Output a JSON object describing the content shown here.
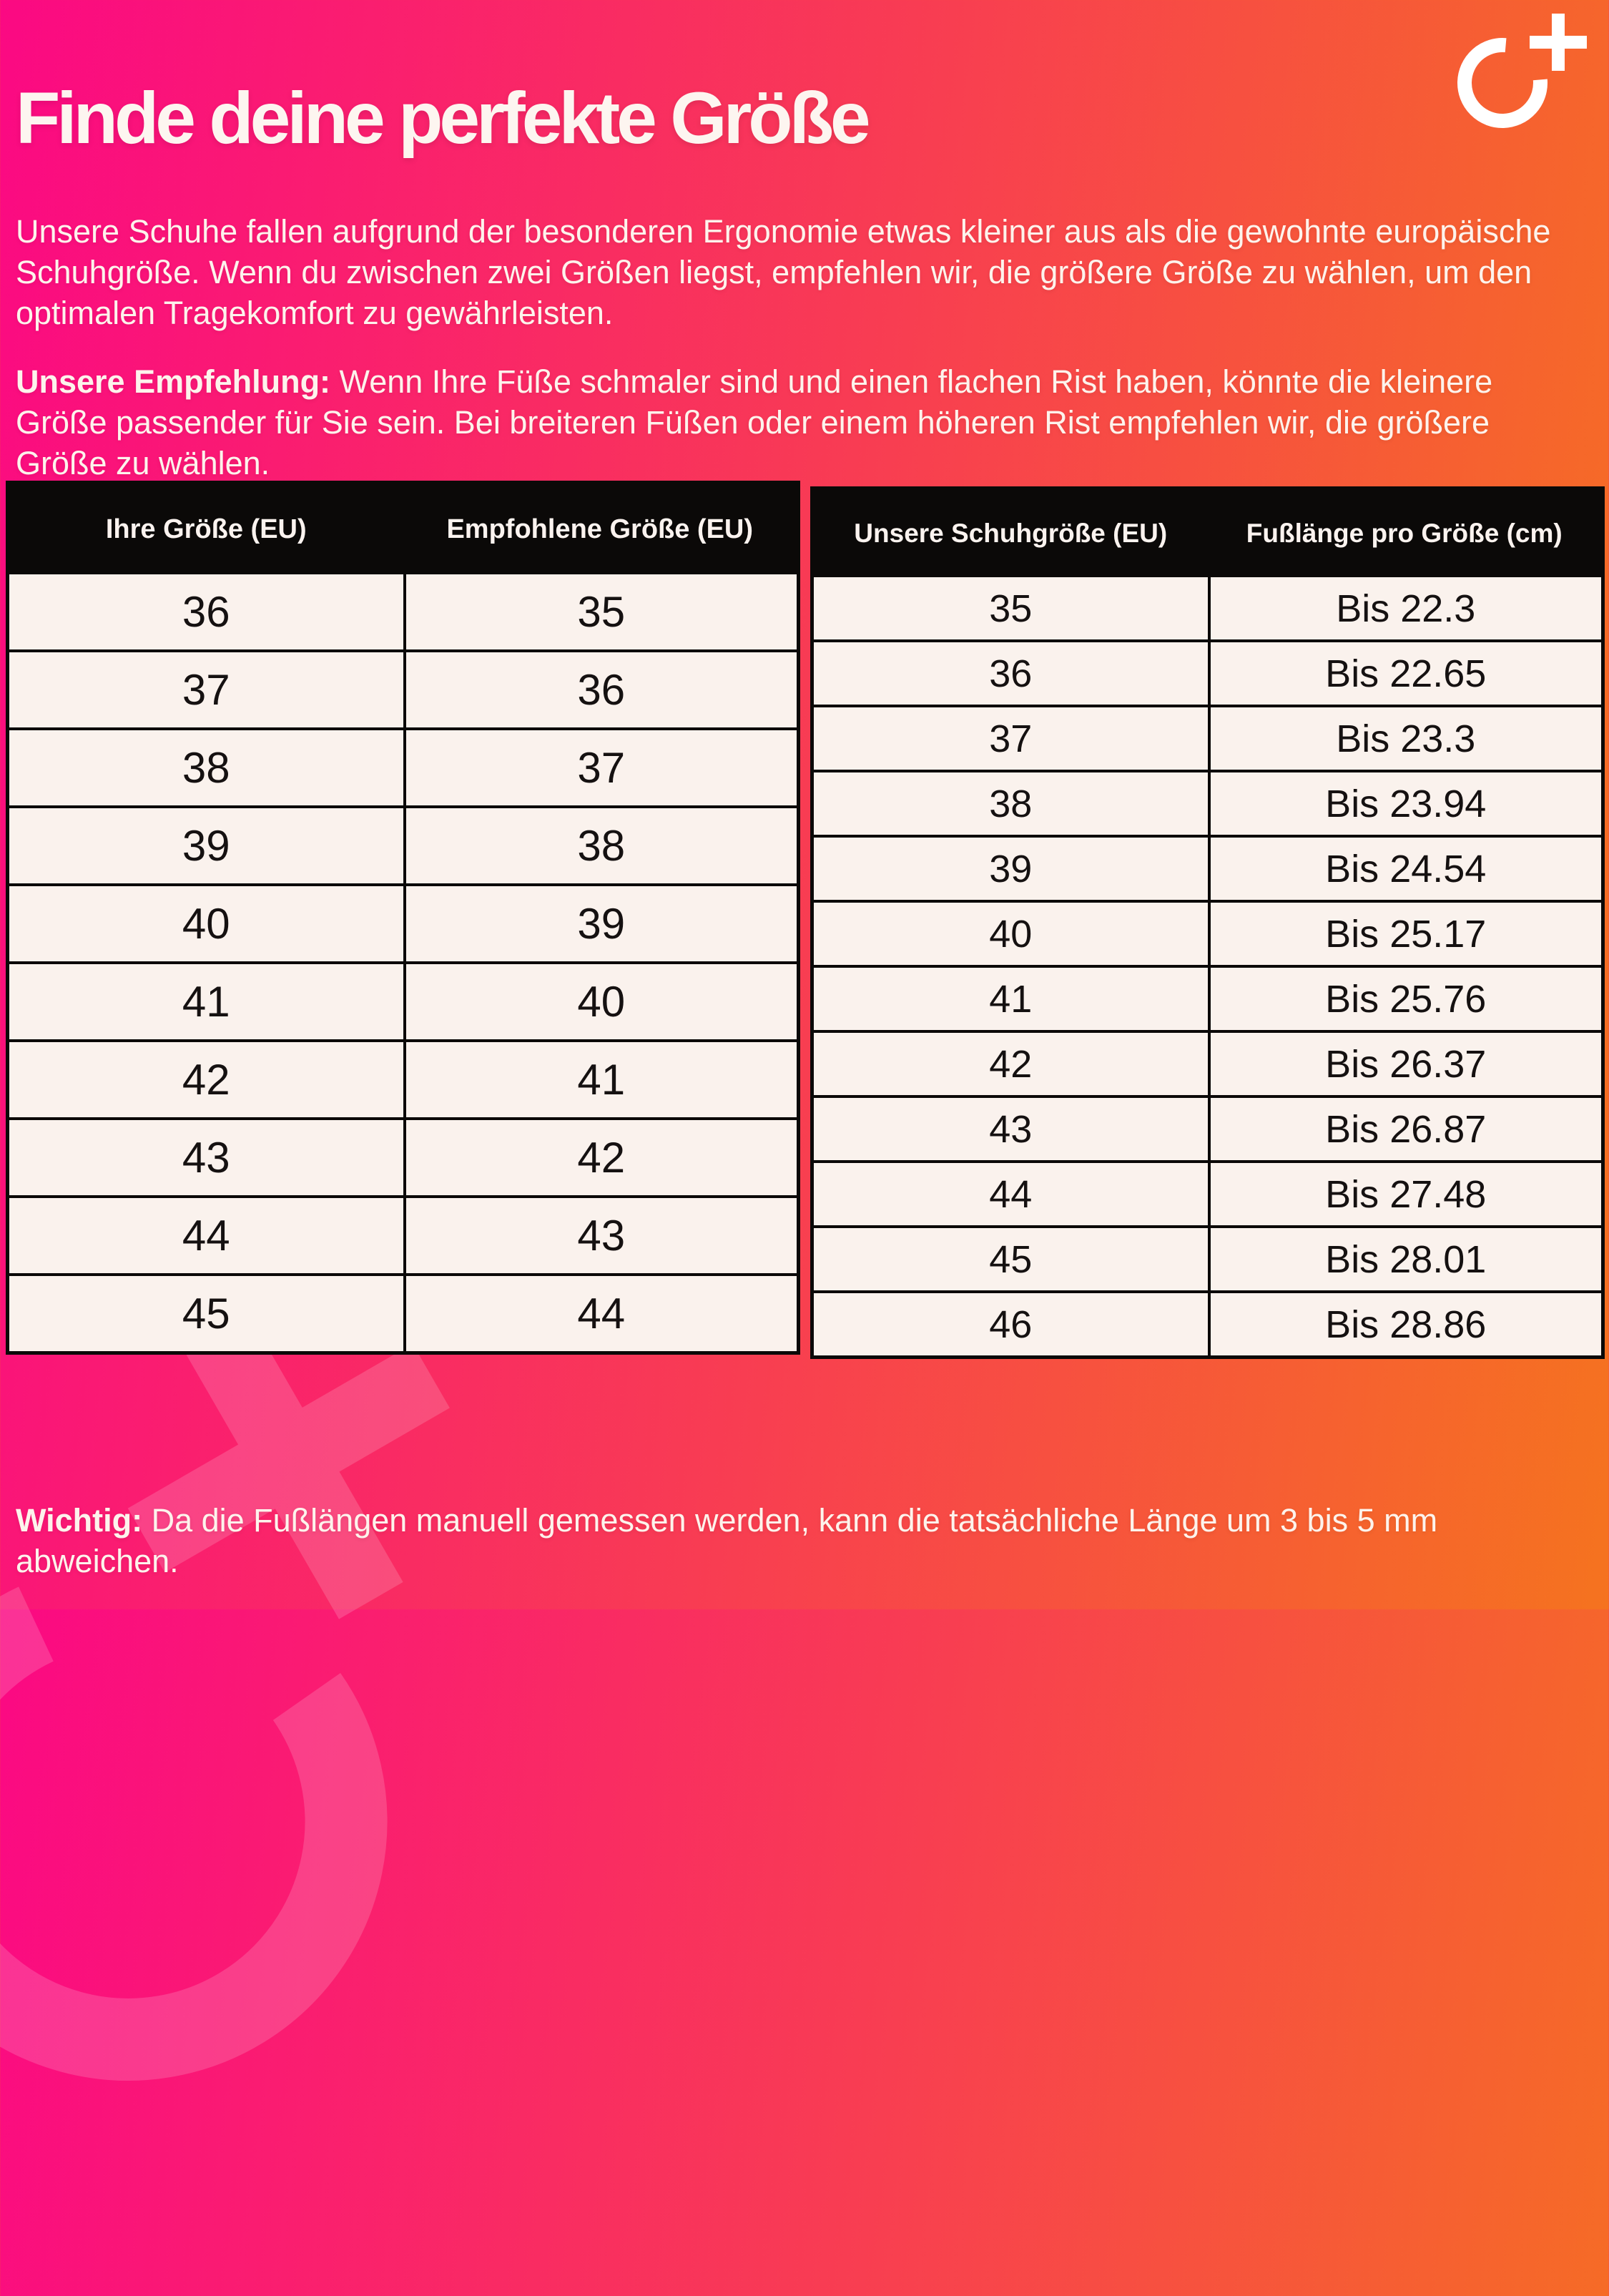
{
  "page": {
    "title": "Finde deine perfekte Größe",
    "intro": "Unsere Schuhe fallen aufgrund der besonderen Ergonomie etwas kleiner aus als die gewohnte europäische Schuhgröße. Wenn du zwischen zwei Größen liegst, empfehlen wir, die größere Größe zu wählen, um den optimalen Tragekomfort zu gewährleisten.",
    "recommendation_label": "Unsere Empfehlung:",
    "recommendation_text": " Wenn Ihre Füße schmaler sind und einen flachen Rist haben, könnte die kleinere Größe passender für Sie sein. Bei breiteren Füßen oder einem höheren Rist empfehlen wir, die größere Größe zu wählen.",
    "note_label": "Wichtig:",
    "note_text": " Da die Fußlängen manuell gemessen werden, kann die tatsächliche Länge um 3 bis 5 mm abweichen."
  },
  "size_table": {
    "headers": [
      "Ihre Größe (EU)",
      "Empfohlene Größe (EU)"
    ],
    "rows": [
      [
        "36",
        "35"
      ],
      [
        "37",
        "36"
      ],
      [
        "38",
        "37"
      ],
      [
        "39",
        "38"
      ],
      [
        "40",
        "39"
      ],
      [
        "41",
        "40"
      ],
      [
        "42",
        "41"
      ],
      [
        "43",
        "42"
      ],
      [
        "44",
        "43"
      ],
      [
        "45",
        "44"
      ]
    ]
  },
  "length_table": {
    "headers": [
      "Unsere Schuhgröße (EU)",
      "Fußlänge pro Größe (cm)"
    ],
    "rows": [
      [
        "35",
        "Bis 22.3"
      ],
      [
        "36",
        "Bis 22.65"
      ],
      [
        "37",
        "Bis 23.3"
      ],
      [
        "38",
        "Bis 23.94"
      ],
      [
        "39",
        "Bis 24.54"
      ],
      [
        "40",
        "Bis 25.17"
      ],
      [
        "41",
        "Bis 25.76"
      ],
      [
        "42",
        "Bis 26.37"
      ],
      [
        "43",
        "Bis 26.87"
      ],
      [
        "44",
        "Bis 27.48"
      ],
      [
        "45",
        "Bis 28.01"
      ],
      [
        "46",
        "Bis 28.86"
      ]
    ]
  },
  "colors": {
    "gradient_start": "#fb0983",
    "gradient_mid": "#f83e51",
    "gradient_end": "#f5731f",
    "table_bg": "#faf2ed",
    "table_header_bg": "#0b0908",
    "light_text": "#fdf3ec"
  },
  "icons": {
    "brand_logo": "circle-plus-logo"
  }
}
